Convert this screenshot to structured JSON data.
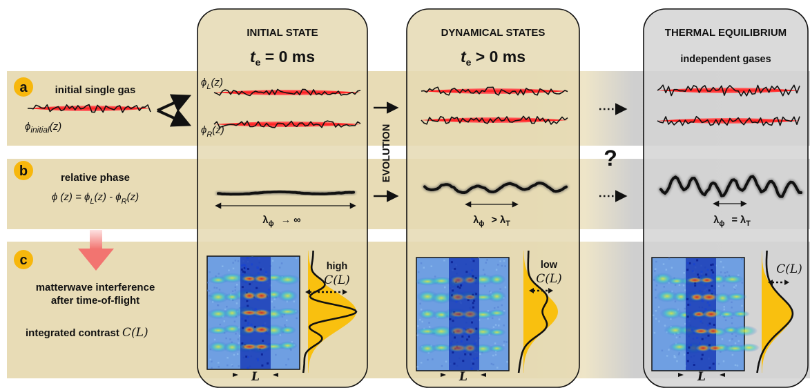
{
  "columns": {
    "initial": {
      "header": "INITIAL STATE",
      "time_sym": "t",
      "time_sub": "e",
      "time_rel": " = 0 ms"
    },
    "dynamical": {
      "header": "DYNAMICAL STATES",
      "time_sym": "t",
      "time_sub": "e",
      "time_rel": " > 0 ms"
    },
    "thermal": {
      "header": "THERMAL EQUILIBRIUM",
      "subtitle": "independent gases"
    }
  },
  "rows": {
    "a": {
      "badge": "a",
      "title": "initial single gas",
      "initial_phi": "ϕ",
      "initial_sub": "initial",
      "initial_arg": "(z)",
      "phi_L": "ϕ",
      "phi_L_sub": "L",
      "phi_L_arg": "(z)",
      "phi_R": "ϕ",
      "phi_R_sub": "R",
      "phi_R_arg": "(z)"
    },
    "b": {
      "badge": "b",
      "title": "relative phase",
      "eq_lhs": "ϕ (z) = ϕ",
      "eq_sub1": "L",
      "eq_mid": "(z) - ϕ",
      "eq_sub2": "R",
      "eq_end": "(z)",
      "lambda_sym": "λ",
      "lambda_sub": "ϕ",
      "rel_initial": "→ ∞",
      "rel_dynamical": "> λ",
      "rel_dynamical_sub": "T",
      "rel_thermal": "= λ",
      "rel_thermal_sub": "T"
    },
    "c": {
      "badge": "c",
      "line1": "matterwave interference",
      "line2": "after time-of-flight",
      "line3": "integrated contrast",
      "contrast_symbol": "C(L)",
      "L_label": "L",
      "high_label": "high",
      "low_label": "low"
    }
  },
  "evolution_label": "EVOLUTION",
  "question_mark": "?",
  "colors": {
    "row_band": "#e8dcb6",
    "panel_fill": "#e5d9b3",
    "thermal_fill": "#d4d4d4",
    "red_fill": "#ff2b2b",
    "badge": "#f7b70d",
    "profile": "#f9c00f",
    "pink_arrow": "#f5807e"
  }
}
